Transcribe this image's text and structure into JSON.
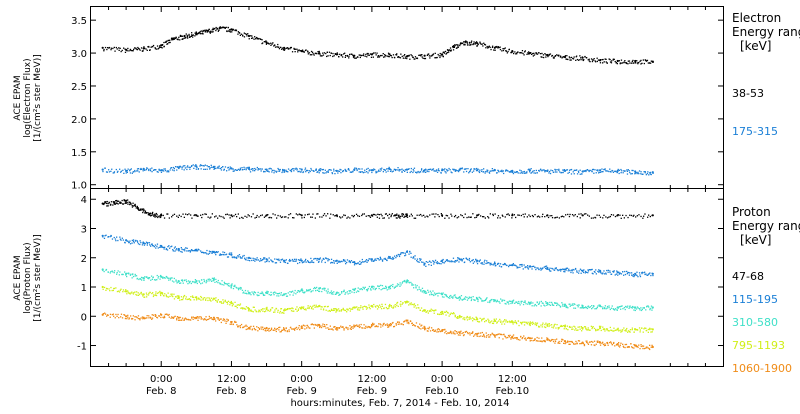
{
  "chart_data": [
    {
      "type": "scatter",
      "panel": "electron",
      "ylabel_lines": [
        "ACE EPAM",
        "log(Electron Flux)",
        "[1/(cm²s ster MeV)]"
      ],
      "ylim": [
        0.95,
        3.7
      ],
      "y_ticks": [
        1.0,
        1.5,
        2.0,
        2.5,
        3.0,
        3.5
      ],
      "y_tick_labels": [
        "1.0",
        "1.5",
        "2.0",
        "2.5",
        "3.0",
        "3.5"
      ],
      "legend_title": [
        "Electron",
        "Energy ranges",
        "[keV]"
      ],
      "series": [
        {
          "name": "38-53",
          "color": "#000000",
          "x": [
            -10,
            -6,
            -3,
            0,
            2,
            4,
            6,
            8,
            10,
            12,
            15,
            18,
            21,
            24,
            27,
            30,
            33,
            36,
            39,
            42,
            45,
            48,
            50,
            52,
            54,
            57,
            60,
            63,
            66,
            69,
            72,
            75,
            78,
            81,
            84
          ],
          "y": [
            3.08,
            3.05,
            3.07,
            3.12,
            3.22,
            3.26,
            3.3,
            3.34,
            3.38,
            3.36,
            3.26,
            3.16,
            3.08,
            3.03,
            3.0,
            2.98,
            2.96,
            2.98,
            2.98,
            2.95,
            2.96,
            2.98,
            3.1,
            3.17,
            3.15,
            3.08,
            3.03,
            3.0,
            2.97,
            2.94,
            2.93,
            2.89,
            2.88,
            2.88,
            2.87
          ]
        },
        {
          "name": "175-315",
          "color": "#1a7fd6",
          "x": [
            -10,
            -6,
            -3,
            0,
            3,
            6,
            9,
            12,
            15,
            18,
            21,
            24,
            27,
            30,
            33,
            36,
            39,
            42,
            45,
            48,
            51,
            54,
            57,
            60,
            63,
            66,
            69,
            72,
            75,
            78,
            81,
            84
          ],
          "y": [
            1.23,
            1.21,
            1.24,
            1.22,
            1.26,
            1.28,
            1.27,
            1.25,
            1.24,
            1.23,
            1.22,
            1.23,
            1.22,
            1.21,
            1.23,
            1.22,
            1.24,
            1.23,
            1.22,
            1.22,
            1.23,
            1.22,
            1.22,
            1.21,
            1.22,
            1.21,
            1.21,
            1.2,
            1.22,
            1.21,
            1.2,
            1.19
          ]
        }
      ]
    },
    {
      "type": "scatter",
      "panel": "proton",
      "ylabel_lines": [
        "ACE EPAM",
        "log(Proton Flux)",
        "[1/(cm²s ster MeV)]"
      ],
      "ylim": [
        -1.7,
        4.35
      ],
      "y_ticks": [
        -1,
        0,
        1,
        2,
        3,
        4
      ],
      "y_tick_labels": [
        "-1",
        "0",
        "1",
        "2",
        "3",
        "4"
      ],
      "legend_title": [
        "Proton",
        "Energy ranges",
        "[keV]"
      ],
      "series": [
        {
          "name": "47-68",
          "color": "#000000",
          "x": [
            -10,
            -8,
            -6,
            -4,
            -2,
            0,
            6,
            12,
            18,
            24,
            30,
            36,
            40,
            42,
            48,
            54,
            60,
            66,
            72,
            78,
            84
          ],
          "y": [
            3.85,
            3.9,
            3.95,
            3.7,
            3.5,
            3.45,
            3.45,
            3.45,
            3.45,
            3.45,
            3.45,
            3.45,
            3.45,
            3.45,
            3.45,
            3.45,
            3.45,
            3.45,
            3.45,
            3.45,
            3.45
          ]
        },
        {
          "name": "115-195",
          "color": "#1a7fd6",
          "x": [
            -10,
            -6,
            -3,
            0,
            3,
            6,
            9,
            12,
            15,
            18,
            21,
            24,
            27,
            30,
            33,
            36,
            39,
            42,
            45,
            48,
            51,
            54,
            57,
            60,
            63,
            66,
            69,
            72,
            75,
            78,
            81,
            84
          ],
          "y": [
            2.75,
            2.6,
            2.5,
            2.4,
            2.3,
            2.25,
            2.2,
            2.1,
            2.0,
            1.95,
            1.9,
            1.9,
            1.95,
            1.9,
            1.85,
            1.95,
            2.0,
            2.2,
            1.8,
            1.9,
            1.95,
            1.9,
            1.8,
            1.75,
            1.7,
            1.65,
            1.6,
            1.55,
            1.55,
            1.5,
            1.45,
            1.45
          ]
        },
        {
          "name": "310-580",
          "color": "#3fe0c8",
          "x": [
            -10,
            -6,
            -3,
            0,
            3,
            6,
            9,
            12,
            15,
            18,
            21,
            24,
            27,
            30,
            33,
            36,
            39,
            42,
            45,
            48,
            51,
            54,
            57,
            60,
            63,
            66,
            69,
            72,
            75,
            78,
            81,
            84
          ],
          "y": [
            1.6,
            1.45,
            1.3,
            1.35,
            1.2,
            1.2,
            1.25,
            1.05,
            0.8,
            0.8,
            0.75,
            0.9,
            0.95,
            0.8,
            0.9,
            1.0,
            1.0,
            1.2,
            0.85,
            0.75,
            0.65,
            0.6,
            0.55,
            0.5,
            0.45,
            0.45,
            0.4,
            0.35,
            0.35,
            0.3,
            0.3,
            0.3
          ]
        },
        {
          "name": "795-1193",
          "color": "#d0ef18",
          "x": [
            -10,
            -6,
            -3,
            0,
            3,
            6,
            9,
            12,
            15,
            18,
            21,
            24,
            27,
            30,
            33,
            36,
            39,
            42,
            45,
            48,
            51,
            54,
            57,
            60,
            63,
            66,
            69,
            72,
            75,
            78,
            81,
            84
          ],
          "y": [
            1.0,
            0.85,
            0.75,
            0.8,
            0.65,
            0.65,
            0.6,
            0.45,
            0.25,
            0.25,
            0.2,
            0.3,
            0.35,
            0.2,
            0.3,
            0.35,
            0.35,
            0.5,
            0.2,
            0.15,
            0.0,
            -0.1,
            -0.15,
            -0.2,
            -0.25,
            -0.3,
            -0.35,
            -0.4,
            -0.4,
            -0.45,
            -0.45,
            -0.45
          ]
        },
        {
          "name": "1060-1900",
          "color": "#f08c18",
          "x": [
            -10,
            -6,
            -3,
            0,
            3,
            6,
            9,
            12,
            15,
            18,
            21,
            24,
            27,
            30,
            33,
            36,
            39,
            42,
            45,
            48,
            51,
            54,
            57,
            60,
            63,
            66,
            69,
            72,
            75,
            78,
            81,
            84
          ],
          "y": [
            0.05,
            0.0,
            -0.05,
            0.05,
            -0.05,
            -0.05,
            -0.05,
            -0.2,
            -0.4,
            -0.4,
            -0.45,
            -0.35,
            -0.3,
            -0.4,
            -0.35,
            -0.3,
            -0.3,
            -0.15,
            -0.4,
            -0.5,
            -0.55,
            -0.6,
            -0.65,
            -0.7,
            -0.75,
            -0.8,
            -0.85,
            -0.9,
            -0.9,
            -0.95,
            -1.0,
            -1.05
          ]
        }
      ]
    }
  ],
  "x_axis": {
    "xlim": [
      -12,
      96
    ],
    "ticks": [
      0,
      12,
      24,
      36,
      48,
      60,
      72
    ],
    "tick_labels_time": [
      "0:00",
      "12:00",
      "0:00",
      "12:00",
      "0:00",
      "12:00",
      ""
    ],
    "tick_labels_date": [
      "Feb. 8",
      "Feb. 8",
      "Feb. 9",
      "Feb. 9",
      "Feb.10",
      "Feb.10",
      ""
    ],
    "title": "hours:minutes, Feb.  7, 2014 - Feb. 10, 2014"
  },
  "legend_labels": {
    "electron_title_1": "Electron",
    "electron_title_2": "Energy ranges",
    "electron_title_3": "[keV]",
    "proton_title_1": "Proton",
    "proton_title_2": "Energy ranges",
    "proton_title_3": "[keV]"
  }
}
